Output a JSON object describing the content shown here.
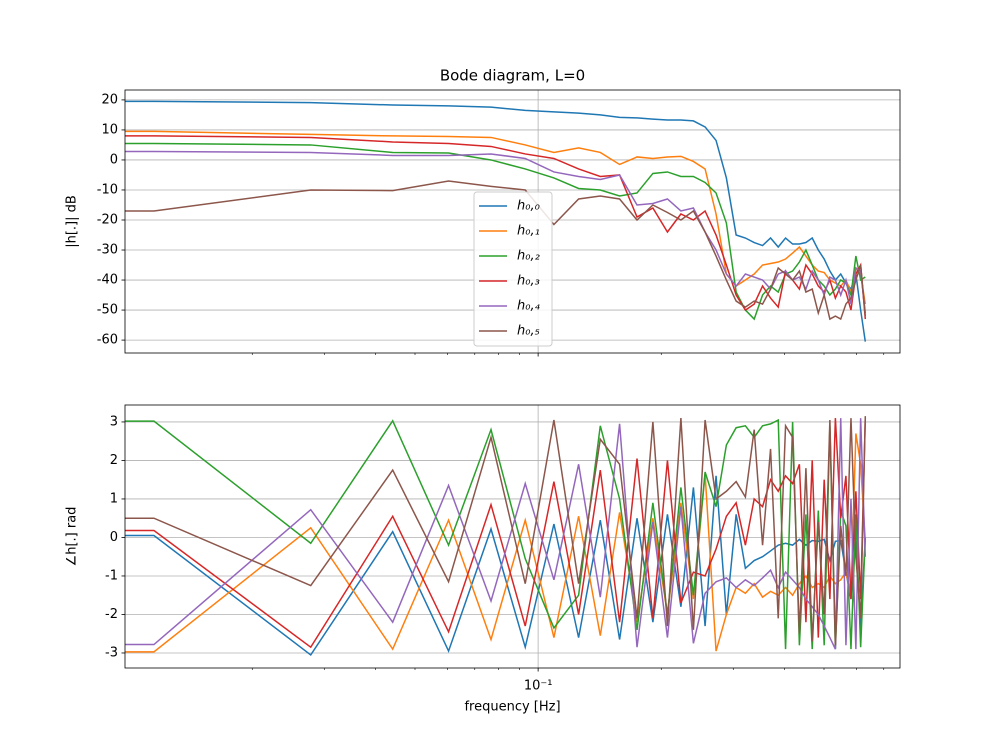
{
  "chart_data": [
    {
      "type": "line",
      "title": "Bode diagram, L=0",
      "ylabel": "|h[.]| dB",
      "x": [
        0.009,
        0.0115,
        0.0278,
        0.0441,
        0.0604,
        0.0767,
        0.093,
        0.1093,
        0.1256,
        0.1419,
        0.1582,
        0.1745,
        0.1908,
        0.2071,
        0.2234,
        0.2397,
        0.256,
        0.2723,
        0.2886,
        0.3049,
        0.3212,
        0.3375,
        0.3538,
        0.3701,
        0.3864,
        0.4027,
        0.419,
        0.4353,
        0.4516,
        0.4679,
        0.4842,
        0.5005,
        0.5168,
        0.5331,
        0.5494,
        0.5657,
        0.582,
        0.5983,
        0.6146,
        0.6309
      ],
      "xscale": "log",
      "xlim": [
        0.00977,
        0.767
      ],
      "xticks": [
        0.1
      ],
      "minor_xticks": [
        0.02,
        0.03,
        0.04,
        0.05,
        0.06,
        0.07,
        0.08,
        0.09,
        0.2,
        0.3,
        0.4,
        0.5,
        0.6,
        0.7
      ],
      "ylim": [
        -64.3,
        23.3
      ],
      "yticks": [
        -60,
        -50,
        -40,
        -30,
        -20,
        -10,
        0,
        10,
        20
      ],
      "grid": true,
      "legend": "center",
      "series": [
        {
          "name": "h₀,₀",
          "color": "#1f77b4",
          "values": [
            19.5,
            19.5,
            19.1,
            18.3,
            18.0,
            17.6,
            16.5,
            16.0,
            15.6,
            15.0,
            14.2,
            14.0,
            13.6,
            13.3,
            13.3,
            13.0,
            11.0,
            6.5,
            -6,
            -25,
            -26,
            -27.5,
            -28.5,
            -26,
            -29,
            -26,
            -28,
            -28,
            -27.5,
            -26,
            -30,
            -33,
            -37,
            -40,
            -38,
            -41,
            -43,
            -38,
            -50,
            -60.5
          ]
        },
        {
          "name": "h₀,₁",
          "color": "#ff7f0e",
          "values": [
            9.5,
            9.5,
            8.5,
            8,
            7.8,
            7.5,
            5,
            2.5,
            4,
            2.5,
            -1.5,
            1,
            0.5,
            1,
            1.2,
            -0.5,
            -3,
            -18,
            -38,
            -42,
            -40,
            -38,
            -35,
            -34.5,
            -34,
            -33,
            -31,
            -29,
            -32,
            -35,
            -37,
            -37.5,
            -40,
            -41,
            -42,
            -40,
            -44,
            -36,
            -38,
            -48
          ]
        },
        {
          "name": "h₀,₂",
          "color": "#2ca02c",
          "values": [
            5.5,
            5.5,
            5,
            2.5,
            2.3,
            0,
            -3,
            -6,
            -9.5,
            -10,
            -12,
            -11,
            -4.5,
            -4,
            -5.5,
            -5.5,
            -7.5,
            -11,
            -21,
            -44,
            -50,
            -53,
            -45,
            -42,
            -44,
            -38,
            -37,
            -34,
            -30,
            -35,
            -40,
            -42,
            -45,
            -43,
            -40,
            -41,
            -45,
            -32,
            -40,
            -39
          ]
        },
        {
          "name": "h₀,₃",
          "color": "#d62728",
          "values": [
            8,
            8,
            7.5,
            6,
            5.5,
            4.5,
            2,
            0.5,
            -3,
            -5.5,
            -5,
            -19,
            -16,
            -24,
            -18,
            -20,
            -17,
            -25,
            -35,
            -45,
            -50,
            -48,
            -42,
            -46,
            -49,
            -37,
            -40,
            -43,
            -35,
            -38,
            -42,
            -44,
            -40,
            -46,
            -42,
            -44,
            -50,
            -38,
            -35,
            -53
          ]
        },
        {
          "name": "h₀,₄",
          "color": "#9467bd",
          "values": [
            2.8,
            2.8,
            2.5,
            1.5,
            1.5,
            2,
            0.5,
            -4,
            -5.5,
            -6.5,
            -5,
            -15,
            -14.5,
            -13,
            -17,
            -16,
            -24,
            -30,
            -38,
            -42,
            -38,
            -39,
            -40,
            -43,
            -38,
            -37,
            -40,
            -39,
            -43,
            -37,
            -40,
            -45,
            -39,
            -40,
            -45,
            -40,
            -48,
            -36,
            -37,
            -51
          ]
        },
        {
          "name": "h₀,₅",
          "color": "#8c564b",
          "values": [
            -17,
            -17,
            -10,
            -10.2,
            -7,
            -8.8,
            -10,
            -21.5,
            -13,
            -12,
            -13,
            -20,
            -15,
            -17.5,
            -20,
            -17,
            -24,
            -32,
            -40,
            -47,
            -49,
            -47,
            -48,
            -43,
            -36,
            -38,
            -40,
            -37,
            -44,
            -43,
            -51,
            -45,
            -53,
            -52,
            -53,
            -48,
            -46,
            -40,
            -35,
            -52
          ]
        }
      ]
    },
    {
      "type": "line",
      "ylabel": "∠h[.] rad",
      "xlabel": "frequency [Hz]",
      "x": [
        0.009,
        0.0115,
        0.0278,
        0.0441,
        0.0604,
        0.0767,
        0.093,
        0.1093,
        0.1256,
        0.1419,
        0.1582,
        0.1745,
        0.1908,
        0.2071,
        0.2234,
        0.2397,
        0.256,
        0.2723,
        0.2886,
        0.3049,
        0.3212,
        0.3375,
        0.3538,
        0.3701,
        0.3864,
        0.4027,
        0.419,
        0.4353,
        0.4516,
        0.4679,
        0.4842,
        0.5005,
        0.5168,
        0.5331,
        0.5494,
        0.5657,
        0.582,
        0.5983,
        0.6146,
        0.6309
      ],
      "xscale": "log",
      "xlim": [
        0.00977,
        0.767
      ],
      "xticks": [
        {
          "value": 0.1,
          "label": "10⁻¹"
        }
      ],
      "minor_xticks": [
        0.02,
        0.03,
        0.04,
        0.05,
        0.06,
        0.07,
        0.08,
        0.09,
        0.2,
        0.3,
        0.4,
        0.5,
        0.6,
        0.7
      ],
      "ylim": [
        -3.39,
        3.44
      ],
      "yticks": [
        -3,
        -2,
        -1,
        0,
        1,
        2,
        3
      ],
      "grid": true,
      "series": [
        {
          "name": "h₀,₀",
          "color": "#1f77b4",
          "values": [
            0.05,
            0.05,
            -3.05,
            0.15,
            -2.95,
            0.22,
            -2.85,
            0.35,
            -2.6,
            0.45,
            -2.65,
            0.5,
            -2.2,
            0.6,
            -1.8,
            1.3,
            -2.3,
            1.6,
            -2.0,
            0.6,
            -0.8,
            -0.6,
            -0.5,
            -0.35,
            -0.2,
            -0.15,
            -0.2,
            -0.05,
            -0.2,
            -0.08,
            -0.1,
            -0.05,
            -0.6,
            -0.1,
            -0.08,
            -0.9,
            -1.6,
            -0.1,
            -2.35,
            0.0
          ]
        },
        {
          "name": "h₀,₁",
          "color": "#ff7f0e",
          "values": [
            -2.97,
            -2.97,
            0.25,
            -2.9,
            0.45,
            -2.65,
            0.45,
            -2.6,
            0.55,
            -2.55,
            0.65,
            -2.2,
            0.5,
            -2.0,
            0.9,
            -1.6,
            1.65,
            -2.95,
            -2.0,
            -1.3,
            -1.45,
            -1.2,
            -1.55,
            -1.4,
            -1.5,
            -1.3,
            -1.5,
            -1.2,
            -1.0,
            -1.3,
            -1.2,
            -1.3,
            -1.0,
            -1.2,
            -1.1,
            -0.9,
            -1.5,
            2.7,
            1.9,
            -0.1
          ]
        },
        {
          "name": "h₀,₂",
          "color": "#2ca02c",
          "values": [
            3.02,
            3.02,
            -0.15,
            3.03,
            -0.2,
            2.8,
            -0.55,
            -2.35,
            -1.5,
            2.9,
            1.0,
            -2.4,
            0.9,
            -2.0,
            1.3,
            -1.5,
            1.7,
            0.8,
            2.4,
            2.85,
            2.9,
            2.6,
            2.9,
            2.95,
            3.05,
            -2.9,
            3.0,
            -2.8,
            0.6,
            -2.9,
            0.7,
            -2.8,
            2.9,
            -2.9,
            0.7,
            0.3,
            -2.9,
            0.6,
            -2.85,
            0.0
          ]
        },
        {
          "name": "h₀,₃",
          "color": "#d62728",
          "values": [
            0.18,
            0.18,
            -2.85,
            0.55,
            -2.45,
            0.85,
            -2.3,
            1.45,
            -2.0,
            1.75,
            -2.2,
            2.05,
            -2.1,
            2.0,
            -1.7,
            -0.9,
            -1.0,
            -0.3,
            0.55,
            0.9,
            -0.2,
            1.0,
            0.8,
            1.5,
            1.2,
            1.6,
            1.4,
            1.9,
            -2.2,
            2.0,
            -2.6,
            1.5,
            -1.6,
            3.1,
            0.5,
            1.6,
            -1.6,
            1.2,
            -1.6,
            3.1
          ]
        },
        {
          "name": "h₀,₄",
          "color": "#9467bd",
          "values": [
            -2.78,
            -2.78,
            0.72,
            -2.2,
            1.35,
            -1.65,
            1.4,
            -1.1,
            1.9,
            -1.55,
            2.95,
            -2.85,
            0.4,
            -2.6,
            0.8,
            -2.75,
            -1.45,
            -1.15,
            -1.05,
            -1.3,
            -1.1,
            -1.25,
            -1.05,
            -0.85,
            -1.3,
            -0.9,
            -1.1,
            -1.3,
            -1.6,
            -1.8,
            -2.0,
            -2.3,
            -2.6,
            -2.9,
            3.1,
            -2.8,
            1.0,
            -2.9,
            3.1,
            -0.5
          ]
        },
        {
          "name": "h₀,₅",
          "color": "#8c564b",
          "values": [
            0.5,
            0.5,
            -1.25,
            1.75,
            -1.15,
            2.6,
            -1.2,
            3.05,
            -1.2,
            2.55,
            1.9,
            -2.1,
            3.0,
            -2.3,
            3.1,
            -2.4,
            3.05,
            1.0,
            1.2,
            1.45,
            1.05,
            2.8,
            -0.2,
            2.3,
            -2.1,
            2.9,
            2.6,
            -2.5,
            1.8,
            -2.7,
            0.4,
            -2.0,
            3.05,
            -2.8,
            0.3,
            -1.0,
            3.1,
            -0.5,
            -2.1,
            3.15
          ]
        }
      ]
    }
  ]
}
